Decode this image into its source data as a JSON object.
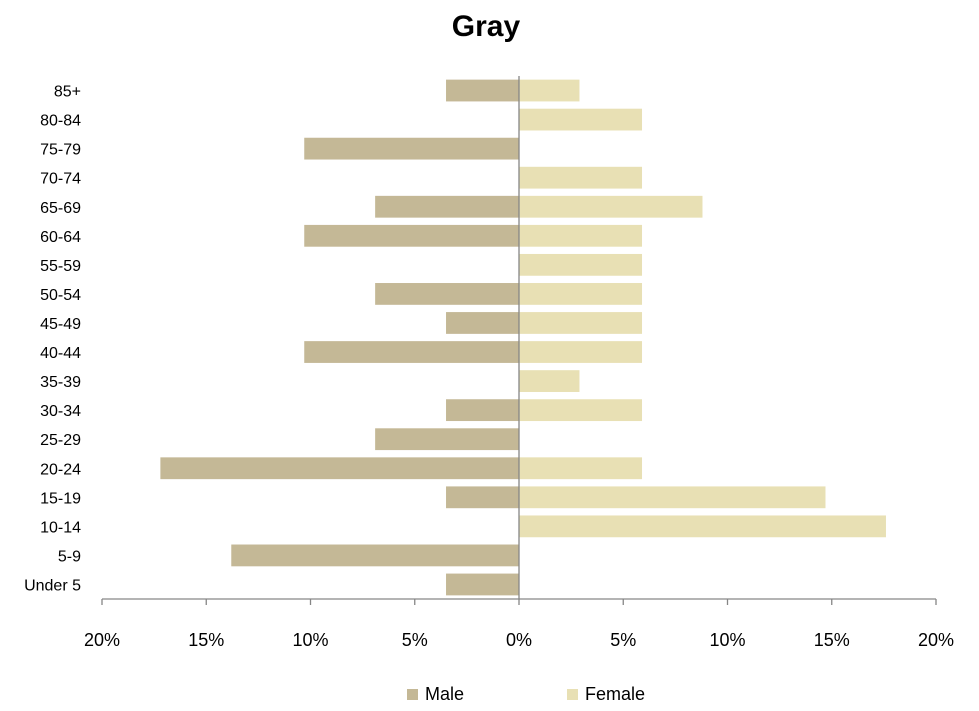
{
  "chart_data": {
    "type": "bar",
    "orientation": "horizontal",
    "title": "Gray",
    "categories": [
      "Under 5",
      "5-9",
      "10-14",
      "15-19",
      "20-24",
      "25-29",
      "30-34",
      "35-39",
      "40-44",
      "45-49",
      "50-54",
      "55-59",
      "60-64",
      "65-69",
      "70-74",
      "75-79",
      "80-84",
      "85+"
    ],
    "series": [
      {
        "name": "Male",
        "color": "#c4b896",
        "values": [
          -3.5,
          -13.8,
          0,
          -3.5,
          -17.2,
          -6.9,
          -3.5,
          0,
          -10.3,
          -3.5,
          -6.9,
          0,
          -10.3,
          -6.9,
          0,
          -10.3,
          0,
          -3.5
        ]
      },
      {
        "name": "Female",
        "color": "#e8e0b4",
        "values": [
          0,
          0,
          17.6,
          14.7,
          5.9,
          0,
          5.9,
          2.9,
          5.9,
          5.9,
          5.9,
          5.9,
          5.9,
          8.8,
          5.9,
          0,
          5.9,
          2.9
        ]
      }
    ],
    "xlim": [
      -20,
      20
    ],
    "xticks": [
      -20,
      -15,
      -10,
      -5,
      0,
      5,
      10,
      15,
      20
    ],
    "xtick_labels": [
      "20%",
      "15%",
      "10%",
      "5%",
      "0%",
      "5%",
      "10%",
      "15%",
      "20%"
    ],
    "legend_position": "bottom",
    "grid": false,
    "axis_color": "#868686"
  }
}
